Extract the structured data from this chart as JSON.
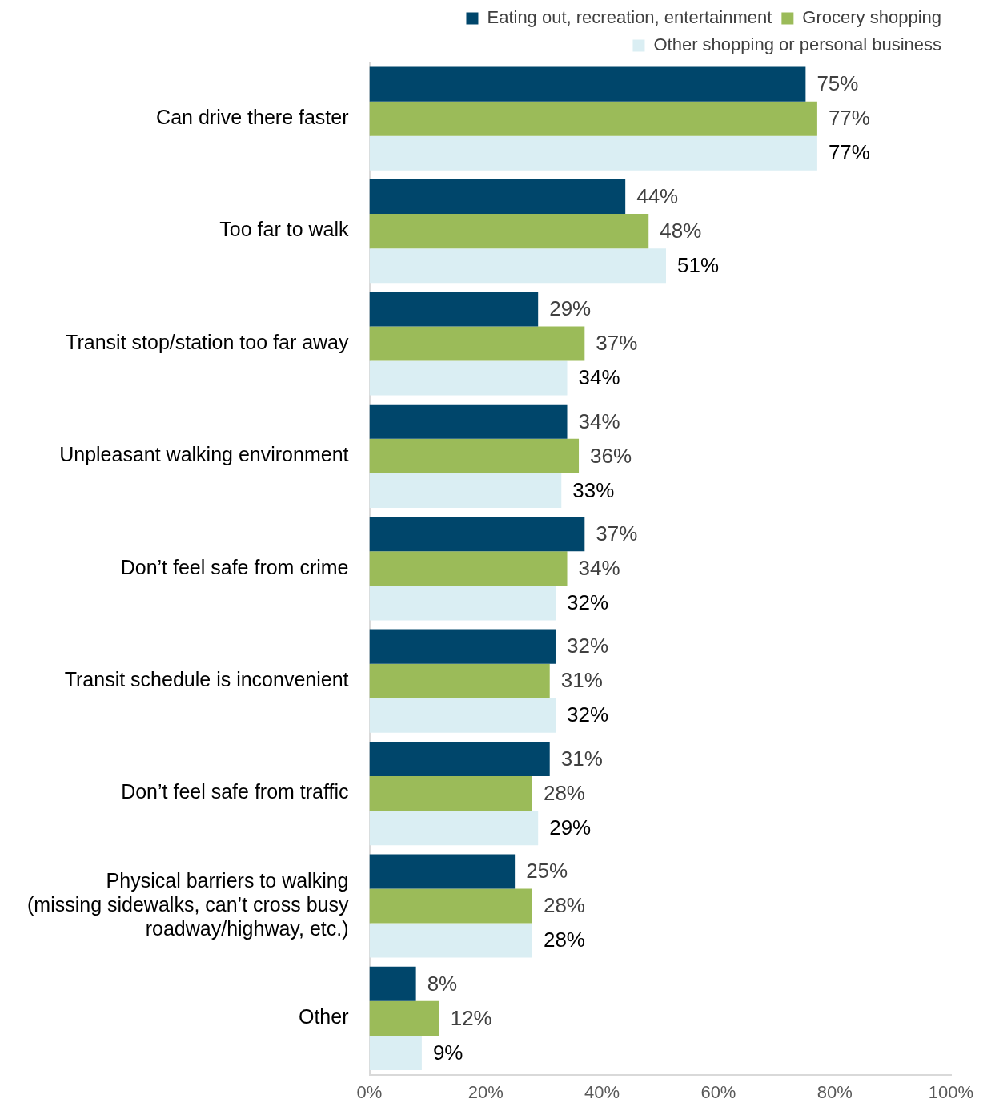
{
  "chart_data": {
    "type": "bar",
    "orientation": "horizontal",
    "legend": "top right",
    "grid": false,
    "categories": [
      "Can drive there faster",
      "Too far to walk",
      "Transit stop/station too far away",
      "Unpleasant walking environment",
      "Don’t feel safe from crime",
      "Transit schedule is inconvenient",
      "Don’t feel safe from traffic",
      "Physical barriers to walking\n(missing sidewalks, can’t cross busy\nroadway/highway, etc.)",
      "Other"
    ],
    "series": [
      {
        "name": "Eating out, recreation, entertainment",
        "color": "#00466b",
        "values": [
          75,
          44,
          29,
          34,
          37,
          32,
          31,
          25,
          8
        ],
        "value_labels": [
          "75%",
          "44%",
          "29%",
          "34%",
          "37%",
          "32%",
          "31%",
          "25%",
          "8%"
        ]
      },
      {
        "name": "Grocery shopping",
        "color": "#9bbb59",
        "values": [
          77,
          48,
          37,
          36,
          34,
          31,
          28,
          28,
          12
        ],
        "value_labels": [
          "77%",
          "48%",
          "37%",
          "36%",
          "34%",
          "31%",
          "28%",
          "28%",
          "12%"
        ]
      },
      {
        "name": "Other shopping or personal business",
        "color": "#daeef3",
        "values": [
          77,
          51,
          34,
          33,
          32,
          32,
          29,
          28,
          9
        ],
        "value_labels": [
          "77%",
          "51%",
          "34%",
          "33%",
          "32%",
          "32%",
          "29%",
          "28%",
          "9%"
        ]
      }
    ],
    "xlim": [
      0,
      100
    ],
    "xticks": [
      {
        "value": 0,
        "label": "0%"
      },
      {
        "value": 20,
        "label": "20%"
      },
      {
        "value": 40,
        "label": "40%"
      },
      {
        "value": 60,
        "label": "60%"
      },
      {
        "value": 80,
        "label": "80%"
      },
      {
        "value": 100,
        "label": "100%"
      }
    ]
  }
}
